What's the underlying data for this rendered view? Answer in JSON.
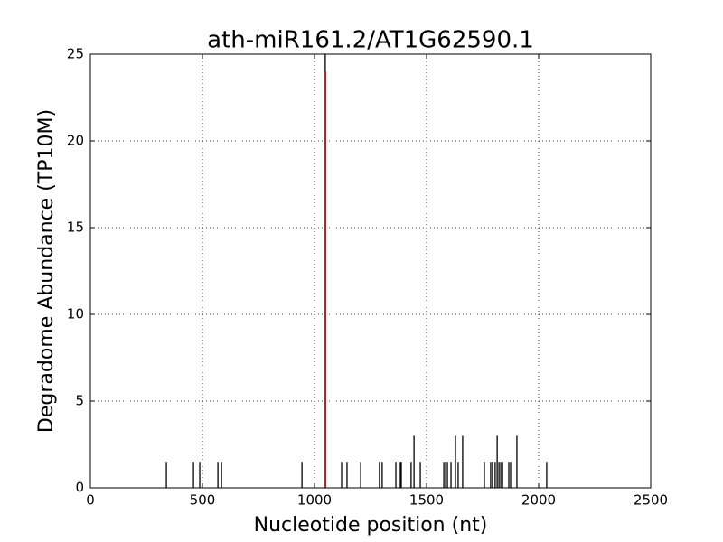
{
  "chart_data": {
    "type": "vlines",
    "title": "ath-miR161.2/AT1G62590.1",
    "x_label": "Nucleotide position (nt)",
    "y_label": "Degradome Abundance (TP10M)",
    "xlim": [
      0,
      2500
    ],
    "xticks": [
      0,
      500,
      1000,
      1500,
      2000,
      2500
    ],
    "ylim": [
      0,
      25
    ],
    "yticks": [
      0,
      5,
      10,
      15,
      20,
      25
    ],
    "grid": true,
    "series": [
      {
        "color": "#000000",
        "x": [
          339,
          460,
          488,
          569,
          585,
          944,
          1048,
          1121,
          1145,
          1206,
          1290,
          1302,
          1363,
          1383,
          1387,
          1431,
          1444,
          1472,
          1577,
          1585,
          1593,
          1609,
          1629,
          1641,
          1661,
          1758,
          1786,
          1794,
          1806,
          1815,
          1823,
          1831,
          1839,
          1867,
          1875,
          1903,
          2036
        ],
        "values": [
          1.5,
          1.5,
          1.5,
          1.5,
          1.5,
          1.5,
          25,
          1.5,
          1.5,
          1.5,
          1.5,
          1.5,
          1.5,
          1.5,
          1.5,
          1.5,
          3,
          1.5,
          1.5,
          1.5,
          1.5,
          1.5,
          3,
          1.5,
          3,
          1.5,
          1.5,
          1.5,
          1.5,
          3,
          1.5,
          1.5,
          1.5,
          1.5,
          1.5,
          3,
          1.5
        ]
      },
      {
        "color": "#ff0000",
        "x": [
          1050
        ],
        "values": [
          24
        ]
      }
    ]
  }
}
